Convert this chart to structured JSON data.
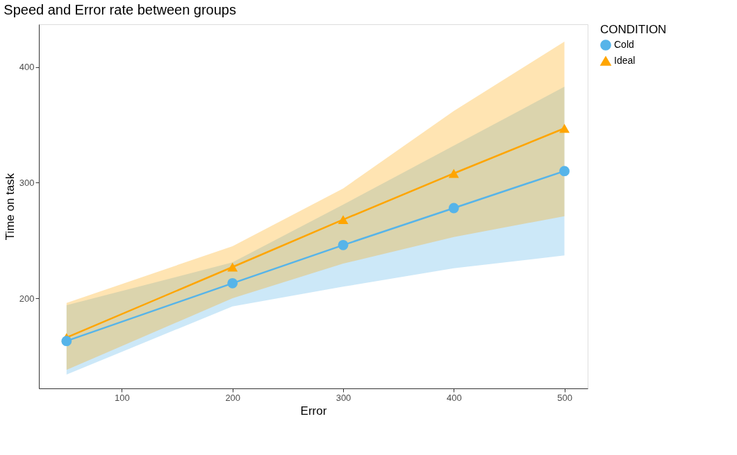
{
  "chart_data": {
    "type": "line",
    "title": "Speed and Error rate between groups",
    "xlabel": "Error",
    "ylabel": "Time on task",
    "legend_title": "CONDITION",
    "x": [
      50,
      200,
      300,
      400,
      500
    ],
    "series": [
      {
        "name": "Cold",
        "color": "#56b4e9",
        "marker": "circle",
        "values": [
          163,
          213,
          246,
          278,
          310
        ],
        "lower": [
          134,
          193,
          210,
          226,
          237
        ],
        "upper": [
          194,
          231,
          281,
          332,
          383
        ]
      },
      {
        "name": "Ideal",
        "color": "#ffa500",
        "marker": "triangle",
        "values": [
          166,
          227,
          268,
          308,
          347
        ],
        "lower": [
          138,
          200,
          230,
          253,
          271
        ],
        "upper": [
          196,
          245,
          295,
          362,
          422
        ]
      }
    ],
    "xlim": [
      25,
      521
    ],
    "ylim": [
      122,
      437
    ],
    "xticks": [
      100,
      200,
      300,
      400,
      500
    ],
    "yticks": [
      200,
      300,
      400
    ],
    "grid": false,
    "legend": "right",
    "line_style": "solid"
  }
}
